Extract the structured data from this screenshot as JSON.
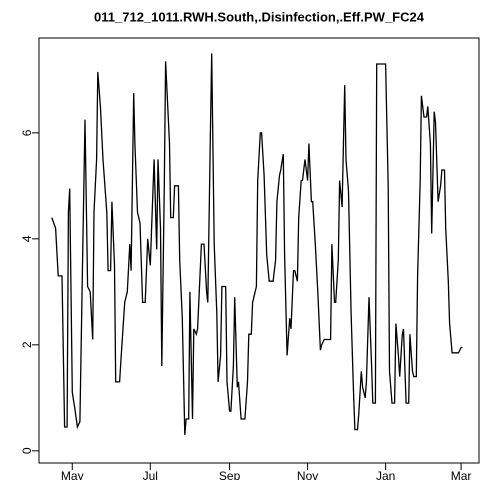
{
  "chart_data": {
    "type": "line",
    "title": "011_712_1011.RWH.South,.Disinfection,.Eff.PW_FC24",
    "color": "#000000",
    "x": [
      -16,
      -13,
      -11,
      -8,
      -6,
      -4,
      -3,
      -2,
      0,
      2,
      4,
      6,
      8,
      10,
      12,
      14,
      16,
      17,
      19,
      20,
      22,
      24,
      27,
      28,
      30,
      31,
      33,
      34,
      37,
      38,
      41,
      43,
      45,
      46,
      48,
      49,
      51,
      53,
      55,
      57,
      59,
      61,
      62,
      64,
      66,
      67,
      69,
      70,
      72,
      73,
      76,
      77,
      79,
      80,
      83,
      84,
      86,
      88,
      89,
      91,
      92,
      94,
      95,
      97,
      98,
      101,
      103,
      105,
      106,
      108,
      109,
      111,
      113,
      114,
      116,
      117,
      120,
      121,
      123,
      124,
      126,
      127,
      129,
      130,
      132,
      134,
      135,
      137,
      138,
      140,
      141,
      144,
      145,
      147,
      148,
      150,
      152,
      154,
      155,
      157,
      159,
      160,
      162,
      163,
      165,
      166,
      168,
      170,
      171,
      173,
      174,
      176,
      177,
      179,
      180,
      182,
      184,
      185,
      187,
      188,
      190,
      192,
      194,
      195,
      197,
      199,
      202,
      203,
      205,
      206,
      208,
      209,
      211,
      213,
      214,
      216,
      218,
      220,
      221,
      223,
      224,
      226,
      227,
      229,
      230,
      232,
      234,
      235,
      237,
      238,
      241,
      243,
      245,
      247,
      248,
      250,
      252,
      253,
      255,
      256,
      258,
      259,
      261,
      263,
      264,
      266,
      267,
      269,
      270,
      272,
      273,
      275,
      277,
      278,
      280,
      281,
      283,
      284,
      286,
      288,
      289,
      291,
      292,
      294,
      295,
      297,
      299,
      302,
      304,
      305
    ],
    "values": [
      4.4,
      4.2,
      3.3,
      3.3,
      0.45,
      0.45,
      4.5,
      4.95,
      1.1,
      0.8,
      0.45,
      0.55,
      3.5,
      6.25,
      3.1,
      3.0,
      2.1,
      4.5,
      5.5,
      7.15,
      6.5,
      5.5,
      4.5,
      3.4,
      3.4,
      4.7,
      3.5,
      1.3,
      1.3,
      1.7,
      2.8,
      3.0,
      3.9,
      3.4,
      6.75,
      5.8,
      4.5,
      4.3,
      2.8,
      2.8,
      4.0,
      3.5,
      4.2,
      5.5,
      3.8,
      5.5,
      4.2,
      1.6,
      5.0,
      7.35,
      5.8,
      4.4,
      4.4,
      5.0,
      5.0,
      3.6,
      2.5,
      0.3,
      0.6,
      0.6,
      3.0,
      0.6,
      2.3,
      2.2,
      2.3,
      3.9,
      3.9,
      3.0,
      2.8,
      6.0,
      7.5,
      3.9,
      2.6,
      1.3,
      1.8,
      3.1,
      3.1,
      1.3,
      0.75,
      0.75,
      1.6,
      2.9,
      1.2,
      1.3,
      0.6,
      0.6,
      0.6,
      1.3,
      2.2,
      2.2,
      2.8,
      3.1,
      5.1,
      6.0,
      6.0,
      5.2,
      3.7,
      3.2,
      3.2,
      3.2,
      3.6,
      4.7,
      5.2,
      5.3,
      5.6,
      3.7,
      1.8,
      2.5,
      2.3,
      3.4,
      3.4,
      3.2,
      4.4,
      5.1,
      5.1,
      5.5,
      5.1,
      5.8,
      4.7,
      4.7,
      3.9,
      3.0,
      1.9,
      2.0,
      2.1,
      2.1,
      2.1,
      3.9,
      2.8,
      2.8,
      3.6,
      5.1,
      4.6,
      6.9,
      5.5,
      4.9,
      2.6,
      1.0,
      0.4,
      0.4,
      0.7,
      1.5,
      1.2,
      1.0,
      1.3,
      2.9,
      1.6,
      0.9,
      0.9,
      7.3,
      7.3,
      7.3,
      7.3,
      5.0,
      1.5,
      0.9,
      0.9,
      2.4,
      1.8,
      1.4,
      2.2,
      2.3,
      0.9,
      0.9,
      2.2,
      1.5,
      1.4,
      1.4,
      3.3,
      5.1,
      6.7,
      6.3,
      6.3,
      6.5,
      5.8,
      4.1,
      6.4,
      6.2,
      4.7,
      5.0,
      5.3,
      5.3,
      4.2,
      3.2,
      2.4,
      1.85,
      1.85,
      1.85,
      1.95,
      1.95
    ],
    "xlim": [
      -26,
      318
    ],
    "xticks": [
      {
        "value": 0,
        "label": "May"
      },
      {
        "value": 61,
        "label": "Jul"
      },
      {
        "value": 123,
        "label": "Sep"
      },
      {
        "value": 184,
        "label": "Nov"
      },
      {
        "value": 245,
        "label": "Jan"
      },
      {
        "value": 304,
        "label": "Mar"
      }
    ],
    "ylim": [
      -0.23,
      7.79
    ],
    "yticks": [
      0,
      2,
      4,
      6
    ]
  }
}
